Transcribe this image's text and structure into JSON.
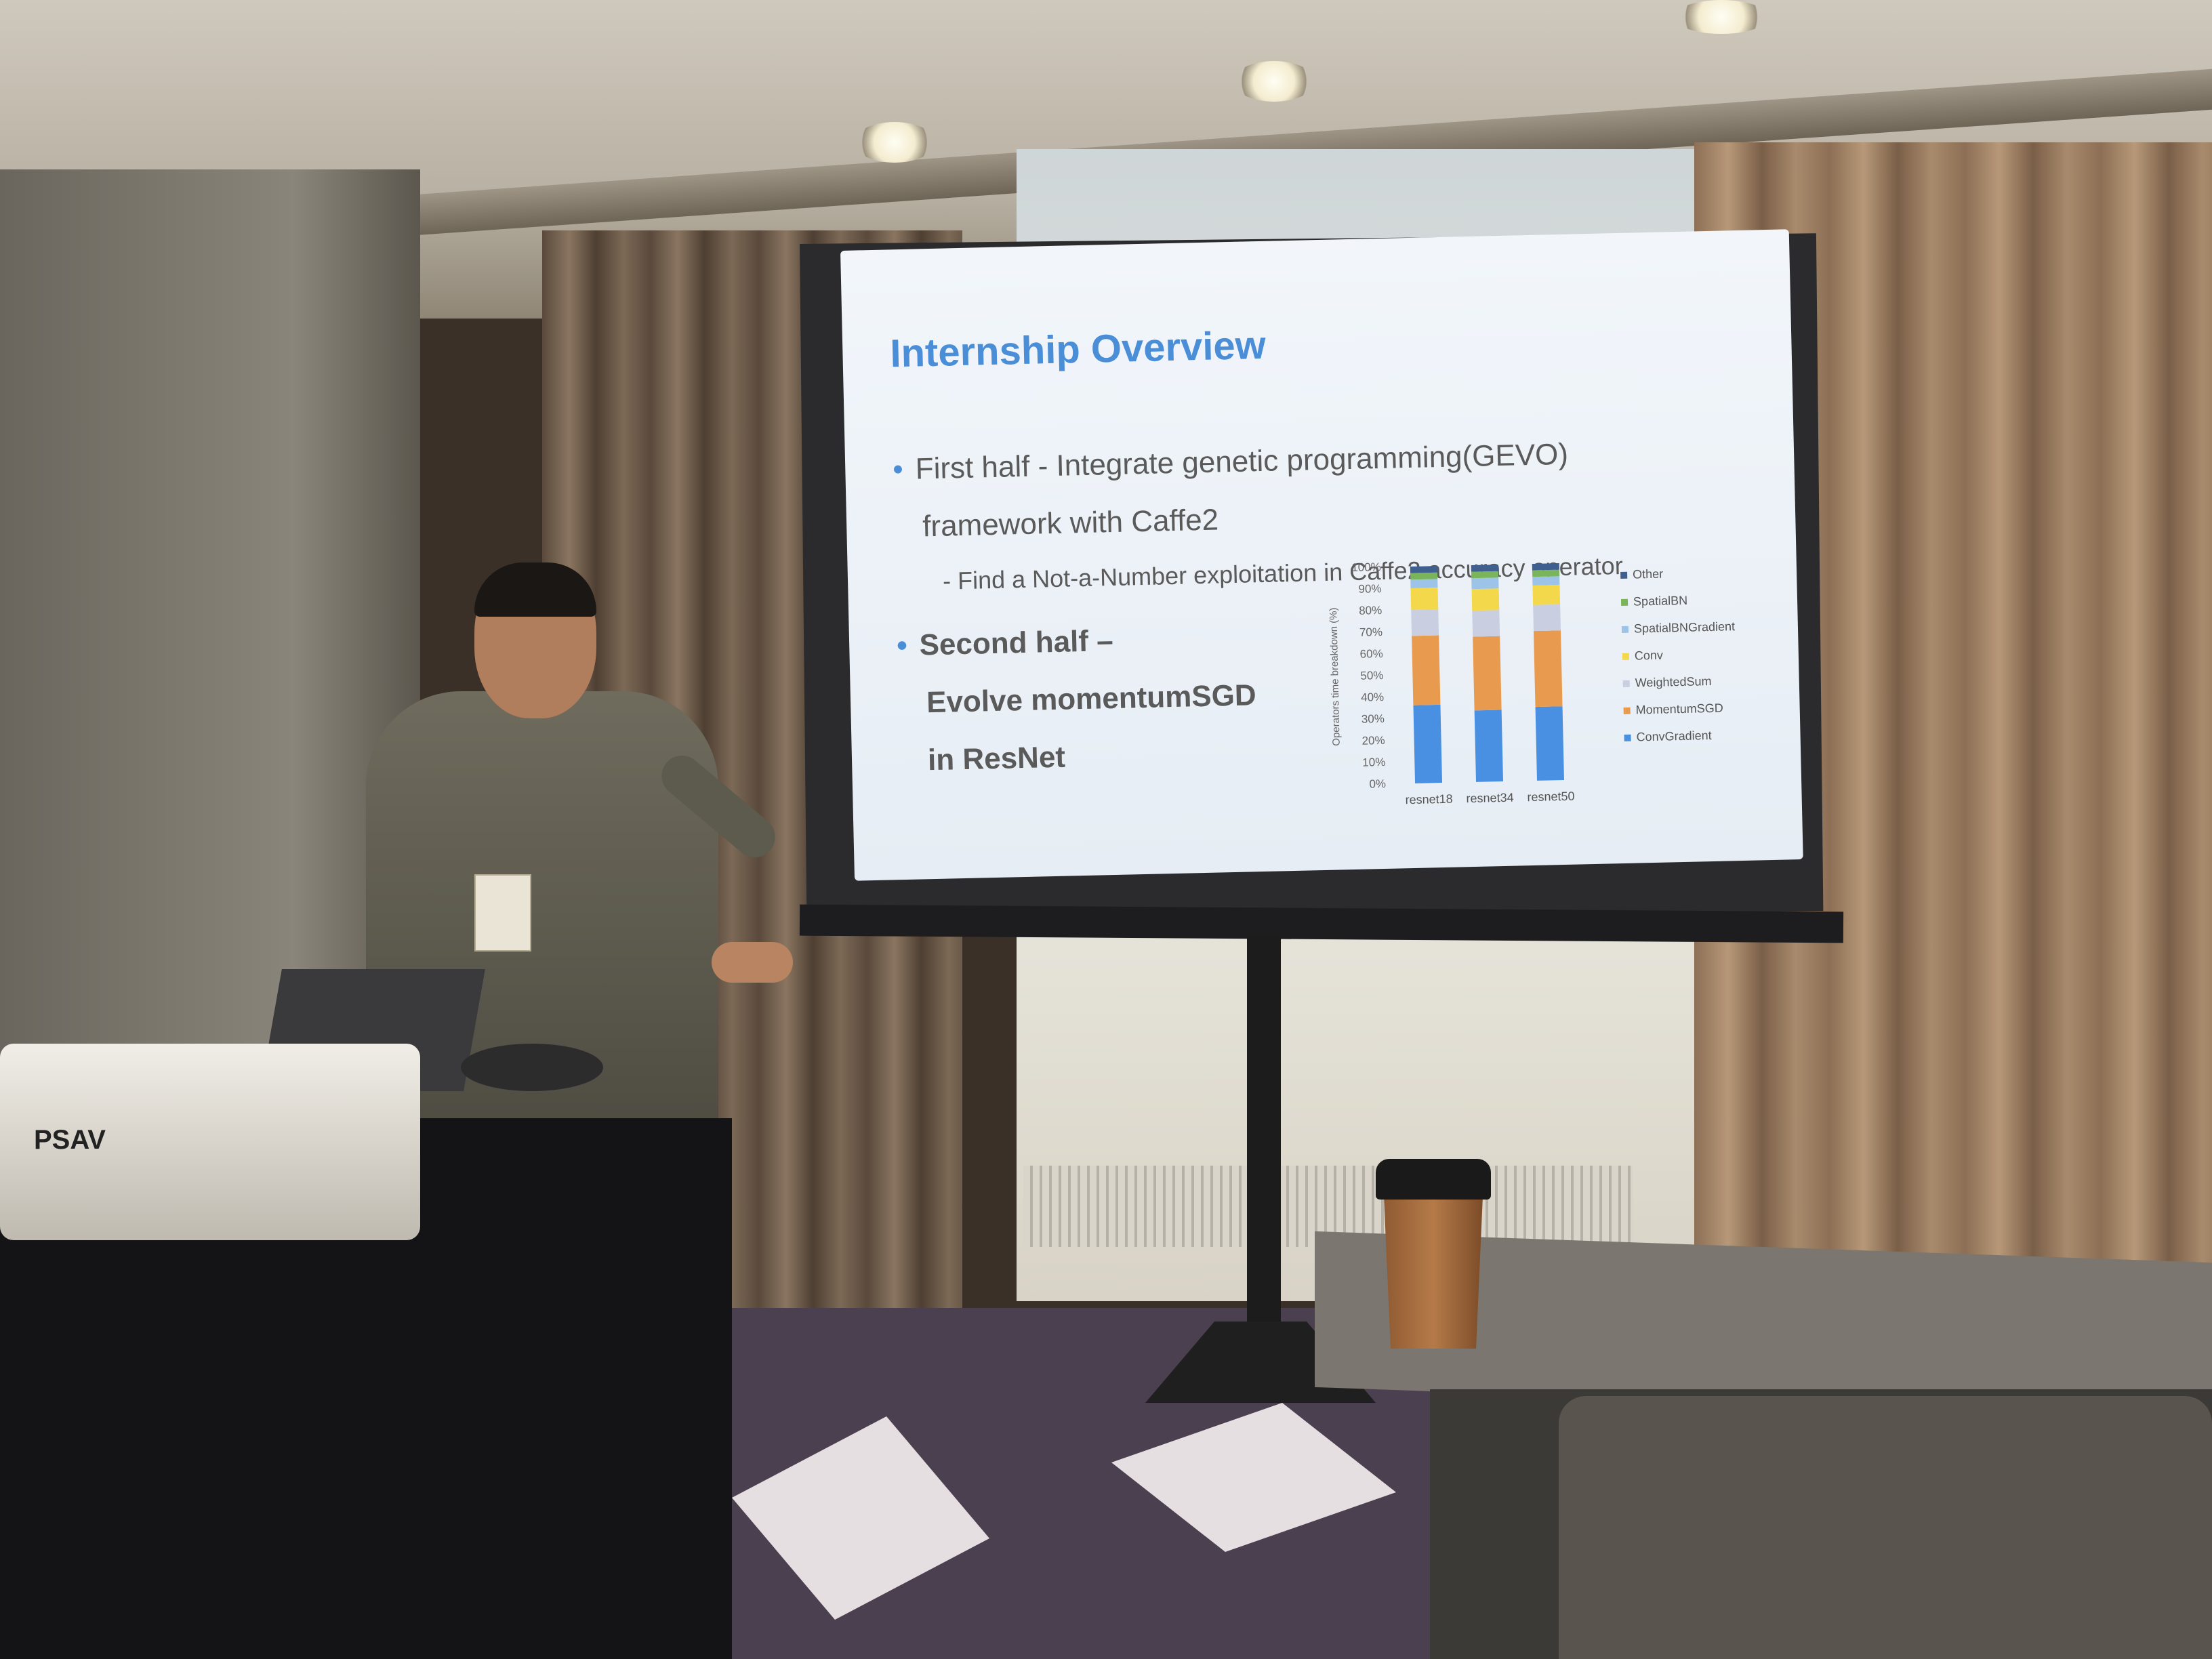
{
  "slide": {
    "title": "Internship Overview",
    "bullet1_line1": "First half - Integrate genetic programming(GEVO)",
    "bullet1_line2": "framework with Caffe2",
    "sub_bullet": "- Find a Not-a-Number exploitation in Caffe2 accuracy operator",
    "bullet2_line1": "Second half –",
    "bullet2_line2": "Evolve momentumSGD",
    "bullet2_line3": "in ResNet"
  },
  "projector_label": "PSAV",
  "chart_data": {
    "type": "bar",
    "stacked": true,
    "categories": [
      "resnet18",
      "resnet34",
      "resnet50"
    ],
    "ylabel": "Operators time breakdown (%)",
    "ylim": [
      0,
      100
    ],
    "yticks": [
      "0%",
      "10%",
      "20%",
      "30%",
      "40%",
      "50%",
      "60%",
      "70%",
      "80%",
      "90%",
      "100%"
    ],
    "legend_position": "right",
    "series": [
      {
        "name": "ConvGradient",
        "color": "#4a90e2",
        "values": [
          36,
          33,
          34
        ]
      },
      {
        "name": "MomentumSGD",
        "color": "#e89a4e",
        "values": [
          32,
          34,
          35
        ]
      },
      {
        "name": "WeightedSum",
        "color": "#c9cfe0",
        "values": [
          12,
          12,
          12
        ]
      },
      {
        "name": "Conv",
        "color": "#f2d84a",
        "values": [
          10,
          10,
          9
        ]
      },
      {
        "name": "SpatialBNGradient",
        "color": "#9ec3e8",
        "values": [
          4,
          5,
          4
        ]
      },
      {
        "name": "SpatialBN",
        "color": "#7ab55c",
        "values": [
          3,
          3,
          3
        ]
      },
      {
        "name": "Other",
        "color": "#3f5f8f",
        "values": [
          3,
          3,
          3
        ]
      }
    ]
  }
}
